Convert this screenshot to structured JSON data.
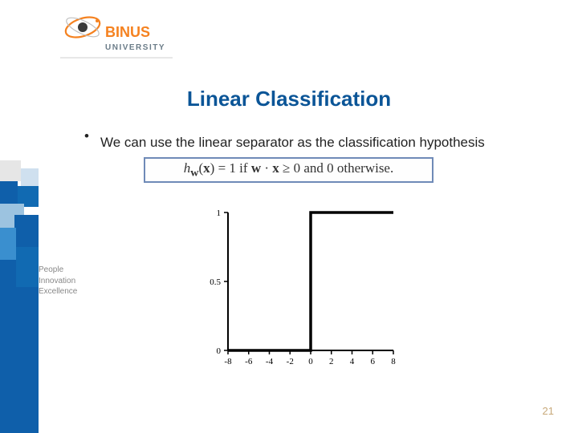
{
  "logo": {
    "brand_top": "BINUS",
    "brand_bottom": "UNIVERSITY",
    "brand_top_color": "#f58220",
    "brand_bottom_color": "#6b7c88",
    "ring_color": "#f58220",
    "dot_color": "#3a3a3a"
  },
  "slide": {
    "title": "Linear Classification",
    "title_color": "#0b5597",
    "bullet_text": "We can use the linear separator as the classification hypothesis",
    "page_number": "21"
  },
  "formula": {
    "raw_markup": "<span class=\"it\">h</span><sub><b>w</b></sub>(<b>x</b>) = 1 if <b>w</b> · <b>x</b> ≥ 0 and 0 otherwise.",
    "border_color": "#6f8ab7"
  },
  "sidebar": {
    "lines": [
      "People",
      "Innovation",
      "Excellence"
    ],
    "text_color": "#888888"
  },
  "left_band": {
    "colors": [
      "#e6e6e6",
      "#0f5faa",
      "#cfe0ef",
      "#116ab2",
      "#9cc3e0",
      "#3a8fcf"
    ]
  },
  "chart": {
    "type": "step",
    "xlim": [
      -8,
      8
    ],
    "ylim": [
      0,
      1
    ],
    "x_ticks": [
      -8,
      -6,
      -4,
      -2,
      0,
      2,
      4,
      6,
      8
    ],
    "y_ticks": [
      0,
      0.5,
      1
    ],
    "y_tick_labels": [
      "0",
      "0.5",
      "1"
    ],
    "step_x": 0,
    "step_y_before": 0,
    "step_y_after": 1,
    "line_color": "#000000",
    "line_width": 3.5,
    "axis_color": "#000000",
    "axis_width": 2,
    "tick_font_size": 11,
    "background": "#ffffff"
  }
}
